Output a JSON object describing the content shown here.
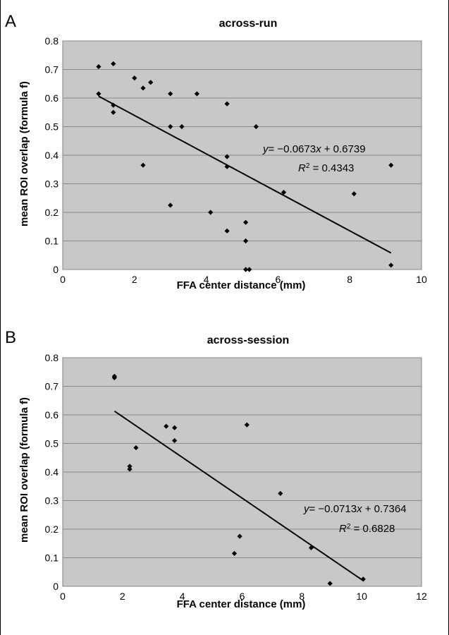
{
  "chart_data": [
    {
      "type": "scatter",
      "panel": "A",
      "title": "across-run",
      "xlabel": "FFA center distance (mm)",
      "ylabel": "mean ROI overlap (formula f)",
      "xlim": [
        0,
        10
      ],
      "ylim": [
        0,
        0.8
      ],
      "xticks": [
        "0",
        "2",
        "4",
        "6",
        "8",
        "10"
      ],
      "yticks": [
        "0",
        "0.1",
        "0.2",
        "0.3",
        "0.4",
        "0.5",
        "0.6",
        "0.7",
        "0.8"
      ],
      "grid": "horizontal",
      "background": "#c8c8c8",
      "point_color": "#000000",
      "points": [
        [
          1.0,
          0.71
        ],
        [
          1.0,
          0.615
        ],
        [
          1.41,
          0.72
        ],
        [
          1.41,
          0.575
        ],
        [
          1.41,
          0.55
        ],
        [
          2.0,
          0.67
        ],
        [
          2.24,
          0.635
        ],
        [
          2.24,
          0.365
        ],
        [
          2.45,
          0.655
        ],
        [
          3.0,
          0.615
        ],
        [
          3.0,
          0.5
        ],
        [
          3.0,
          0.225
        ],
        [
          3.32,
          0.5
        ],
        [
          3.74,
          0.615
        ],
        [
          4.12,
          0.2
        ],
        [
          4.58,
          0.58
        ],
        [
          4.58,
          0.395
        ],
        [
          4.58,
          0.36
        ],
        [
          4.58,
          0.135
        ],
        [
          5.1,
          0.165
        ],
        [
          5.1,
          0.1
        ],
        [
          5.1,
          0.0
        ],
        [
          5.2,
          0.0
        ],
        [
          5.39,
          0.5
        ],
        [
          6.16,
          0.27
        ],
        [
          8.12,
          0.265
        ],
        [
          9.15,
          0.365
        ],
        [
          9.15,
          0.015
        ]
      ],
      "trendline": {
        "slope": -0.0673,
        "intercept": 0.6739,
        "x_range": [
          1.0,
          9.15
        ],
        "equation": "= −0.0673",
        "equation_rest": " + 0.6739",
        "r2_value": " = 0.4343"
      }
    },
    {
      "type": "scatter",
      "panel": "B",
      "title": "across-session",
      "xlabel": "FFA center distance (mm)",
      "ylabel": "mean ROI overlap (formula f)",
      "xlim": [
        0,
        12
      ],
      "ylim": [
        0,
        0.8
      ],
      "xticks": [
        "0",
        "2",
        "4",
        "6",
        "8",
        "10",
        "12"
      ],
      "yticks": [
        "0",
        "0.1",
        "0.2",
        "0.3",
        "0.4",
        "0.5",
        "0.6",
        "0.7",
        "0.8"
      ],
      "grid": "horizontal",
      "background": "#c8c8c8",
      "point_color": "#000000",
      "points": [
        [
          1.73,
          0.735
        ],
        [
          1.73,
          0.73
        ],
        [
          2.24,
          0.42
        ],
        [
          2.24,
          0.41
        ],
        [
          2.45,
          0.485
        ],
        [
          3.46,
          0.56
        ],
        [
          3.74,
          0.555
        ],
        [
          3.74,
          0.51
        ],
        [
          5.74,
          0.115
        ],
        [
          5.92,
          0.175
        ],
        [
          6.16,
          0.565
        ],
        [
          7.28,
          0.325
        ],
        [
          8.31,
          0.135
        ],
        [
          8.94,
          0.01
        ],
        [
          10.05,
          0.025
        ]
      ],
      "trendline": {
        "slope": -0.0713,
        "intercept": 0.7364,
        "x_range": [
          1.73,
          10.05
        ],
        "equation": "= −0.0713",
        "equation_rest": " + 0.7364",
        "r2_value": " = 0.6828"
      }
    }
  ]
}
